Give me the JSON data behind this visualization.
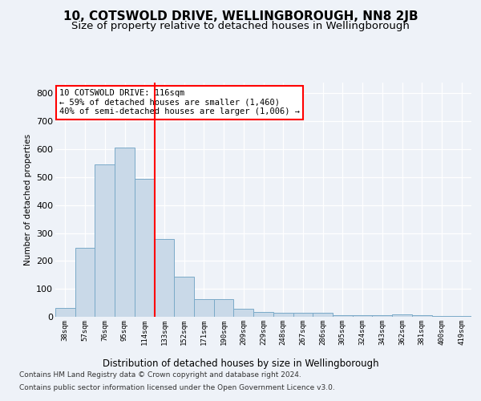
{
  "title": "10, COTSWOLD DRIVE, WELLINGBOROUGH, NN8 2JB",
  "subtitle": "Size of property relative to detached houses in Wellingborough",
  "xlabel": "Distribution of detached houses by size in Wellingborough",
  "ylabel": "Number of detached properties",
  "categories": [
    "38sqm",
    "57sqm",
    "76sqm",
    "95sqm",
    "114sqm",
    "133sqm",
    "152sqm",
    "171sqm",
    "190sqm",
    "209sqm",
    "229sqm",
    "248sqm",
    "267sqm",
    "286sqm",
    "305sqm",
    "324sqm",
    "343sqm",
    "362sqm",
    "381sqm",
    "400sqm",
    "419sqm"
  ],
  "values": [
    32,
    248,
    547,
    607,
    495,
    280,
    145,
    62,
    62,
    30,
    18,
    15,
    13,
    13,
    7,
    5,
    5,
    8,
    5,
    3,
    4
  ],
  "bar_color": "#c9d9e8",
  "bar_edge_color": "#7aaac8",
  "annotation_text": "10 COTSWOLD DRIVE: 116sqm\n← 59% of detached houses are smaller (1,460)\n40% of semi-detached houses are larger (1,006) →",
  "annotation_box_color": "white",
  "annotation_box_edge_color": "red",
  "vline_color": "red",
  "ylim": [
    0,
    840
  ],
  "yticks": [
    0,
    100,
    200,
    300,
    400,
    500,
    600,
    700,
    800
  ],
  "footer_line1": "Contains HM Land Registry data © Crown copyright and database right 2024.",
  "footer_line2": "Contains public sector information licensed under the Open Government Licence v3.0.",
  "background_color": "#eef2f8",
  "grid_color": "white",
  "title_fontsize": 11,
  "subtitle_fontsize": 9.5
}
